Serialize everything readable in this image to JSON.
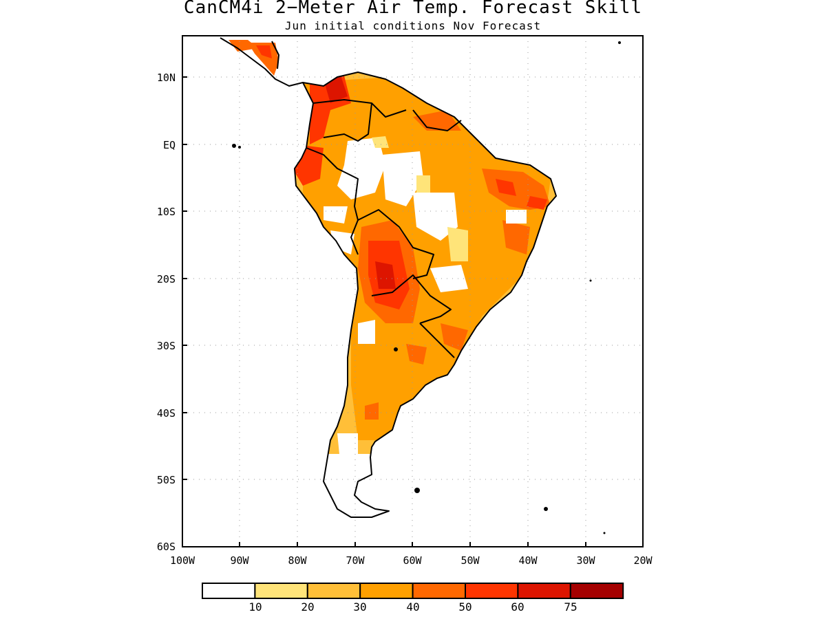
{
  "title": "CanCM4i 2−Meter Air Temp. Forecast Skill",
  "subtitle": "Jun initial conditions   Nov Forecast",
  "map": {
    "lon_range": [
      -100,
      -20
    ],
    "lat_range": [
      -60,
      15
    ],
    "lon_ticks": [
      "100W",
      "90W",
      "80W",
      "70W",
      "60W",
      "50W",
      "40W",
      "30W",
      "20W"
    ],
    "lat_ticks": [
      "10N",
      "EQ",
      "10S",
      "20S",
      "30S",
      "40S",
      "50S",
      "60S"
    ],
    "grid": "dotted"
  },
  "colorbar": {
    "labels": [
      "10",
      "20",
      "30",
      "40",
      "50",
      "60",
      "75"
    ],
    "colors": [
      "#ffffff",
      "#ffe479",
      "#ffbf38",
      "#ffa000",
      "#ff6800",
      "#ff3500",
      "#dd1500",
      "#a50000"
    ]
  }
}
